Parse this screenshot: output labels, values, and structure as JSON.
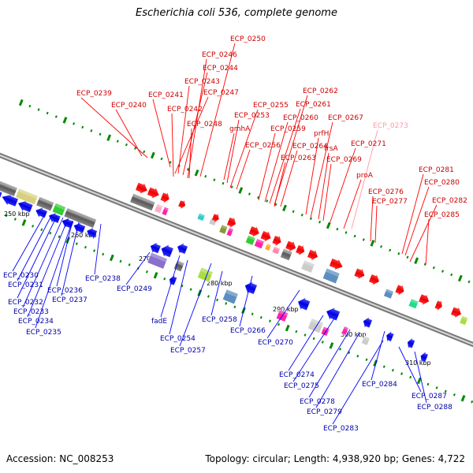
{
  "title": "Escherichia coli 536, complete genome",
  "footer": {
    "accession": "Accession: NC_008253",
    "topology": "Topology: circular; Length: 4,938,920 bp; Genes: 4,722"
  },
  "colors": {
    "forward": "#ff0000",
    "reverse": "#0000ff",
    "forward_label": "#cc0000",
    "reverse_label": "#0000aa",
    "pink_label": "#ff9aaa",
    "axis": "#888888",
    "tick": "#008800"
  },
  "scale_labels": [
    "250 kbp",
    "260 kbp",
    "270 kbp",
    "280 kbp",
    "290 kbp",
    "300 kbp",
    "310 kbp"
  ],
  "upper_labels": [
    {
      "text": "ECP_0250",
      "color": "red"
    },
    {
      "text": "ECP_0246",
      "color": "red"
    },
    {
      "text": "ECP_0244",
      "color": "red"
    },
    {
      "text": "ECP_0243",
      "color": "red"
    },
    {
      "text": "ECP_0247",
      "color": "red"
    },
    {
      "text": "ECP_0239",
      "color": "red"
    },
    {
      "text": "ECP_0241",
      "color": "red"
    },
    {
      "text": "ECP_0240",
      "color": "red"
    },
    {
      "text": "ECP_0242",
      "color": "red"
    },
    {
      "text": "ECP_0248",
      "color": "red"
    },
    {
      "text": "ECP_0262",
      "color": "red"
    },
    {
      "text": "ECP_0261",
      "color": "red"
    },
    {
      "text": "ECP_0255",
      "color": "red"
    },
    {
      "text": "ECP_0253",
      "color": "red"
    },
    {
      "text": "ECP_0260",
      "color": "red"
    },
    {
      "text": "ECP_0267",
      "color": "red"
    },
    {
      "text": "prfH",
      "color": "red"
    },
    {
      "text": "gmhA",
      "color": "red"
    },
    {
      "text": "ECP_0259",
      "color": "red"
    },
    {
      "text": "ECP_0273",
      "color": "pink"
    },
    {
      "text": "ECP_0256",
      "color": "red"
    },
    {
      "text": "ECP_0264",
      "color": "red"
    },
    {
      "text": "ECP_0271",
      "color": "red"
    },
    {
      "text": "frsA",
      "color": "red"
    },
    {
      "text": "ECP_0263",
      "color": "red"
    },
    {
      "text": "ECP_0269",
      "color": "red"
    },
    {
      "text": "proA",
      "color": "red"
    },
    {
      "text": "ECP_0281",
      "color": "red"
    },
    {
      "text": "ECP_0280",
      "color": "red"
    },
    {
      "text": "ECP_0276",
      "color": "red"
    },
    {
      "text": "ECP_0277",
      "color": "red"
    },
    {
      "text": "ECP_0282",
      "color": "red"
    },
    {
      "text": "ECP_0285",
      "color": "red"
    }
  ],
  "lower_labels": [
    {
      "text": "ECP_0230"
    },
    {
      "text": "ECP_0231"
    },
    {
      "text": "ECP_0238"
    },
    {
      "text": "ECP_0236"
    },
    {
      "text": "ECP_0249"
    },
    {
      "text": "ECP_0232"
    },
    {
      "text": "ECP_0237"
    },
    {
      "text": "ECP_0233"
    },
    {
      "text": "ECP_0234"
    },
    {
      "text": "ECP_0235"
    },
    {
      "text": "fadE"
    },
    {
      "text": "ECP_0258"
    },
    {
      "text": "ECP_0266"
    },
    {
      "text": "ECP_0254"
    },
    {
      "text": "ECP_0270"
    },
    {
      "text": "ECP_0257"
    },
    {
      "text": "ECP_0274"
    },
    {
      "text": "ECP_0275"
    },
    {
      "text": "ECP_0284"
    },
    {
      "text": "ECP_0278"
    },
    {
      "text": "ECP_0279"
    },
    {
      "text": "ECP_0287"
    },
    {
      "text": "ECP_0288"
    },
    {
      "text": "ECP_0283"
    }
  ]
}
